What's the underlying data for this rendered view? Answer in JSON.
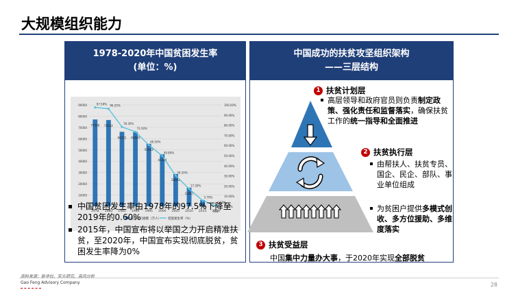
{
  "page": {
    "title": "大规模组织能力",
    "page_number": "28",
    "source": "资料来源：新华社、实头研究、高风分析",
    "company": "Gao Feng Advisory Company"
  },
  "left_panel": {
    "header_line1": "1978-2020年中国贫困发生率",
    "header_line2": "(单位：%)",
    "bullets": [
      "中国贫困发生率由1978年的97.5%下降至2019年的0.60%",
      "2015年，中国宣布将以举国之力开启精准扶贫，至2020年，中国宣布实现彻底脱贫，贫困发生率降为0%"
    ]
  },
  "right_panel": {
    "header_line1": "中国成功的扶贫攻坚组织架构",
    "header_line2": "——三层结构",
    "layers": [
      {
        "num": "1",
        "name": "扶贫计划层",
        "desc_parts": [
          [
            "高层领导和政府官员则负责",
            false
          ],
          [
            "制定政策、强化责任和监督落实",
            true
          ],
          [
            "，确保扶贫工作的",
            false
          ],
          [
            "统一指导和全面推进",
            true
          ]
        ]
      },
      {
        "num": "2",
        "name": "扶贫执行层",
        "desc_parts": [
          [
            "由帮扶人、扶贫专员、国企、民企、部队、事业单位组成",
            false
          ]
        ]
      },
      {
        "num": "3",
        "name": "扶贫受益层",
        "desc_parts": [
          [
            "为贫困户提供",
            false
          ],
          [
            "多模式创收、多方位援助、多维度落实",
            true
          ]
        ]
      }
    ],
    "bottom_parts": [
      [
        "中国",
        false
      ],
      [
        "集中力量办大事",
        true
      ],
      [
        "，于2020年实现",
        false
      ],
      [
        "全部脱贫",
        true
      ]
    ],
    "colors": {
      "top": "#2e75b6",
      "middle": "#9dc3e6",
      "bottom": "#bfbfbf"
    }
  },
  "chart_data": {
    "type": "bar",
    "categories": [
      "1978",
      "1980",
      "1985",
      "1990",
      "1995",
      "2000",
      "2005",
      "2010",
      "2015",
      "2019"
    ],
    "series": [
      {
        "name": "贫困人口规模（万人）",
        "type": "bar",
        "values": [
          77039,
          76542,
          66101,
          65849,
          55463,
          46224,
          28662,
          16567,
          5575,
          551
        ]
      },
      {
        "name": "贫困发生率（%）",
        "type": "line",
        "values": [
          97.5,
          96.2,
          78.3,
          73.5,
          60.5,
          49.8,
          30.2,
          17.2,
          5.7,
          0.6
        ]
      }
    ],
    "bar_labels": [
      "77039",
      "76542",
      "66101",
      "65849",
      "55463",
      "46224",
      "28662",
      "16567",
      "5575",
      "551"
    ],
    "line_labels": [
      "97.50%",
      "96.20%",
      "78.30%",
      "73.50%",
      "60.50%",
      "49.80%",
      "30.20%",
      "17.20%",
      "5.70%",
      "0.60%"
    ],
    "y_left_ticks": [
      "0",
      "10000",
      "20000",
      "30000",
      "40000",
      "50000",
      "60000",
      "70000",
      "80000",
      "90000"
    ],
    "y_right_ticks": [
      "0.00%",
      "10.00%",
      "20.00%",
      "30.00%",
      "40.00%",
      "50.00%",
      "60.00%",
      "70.00%",
      "80.00%",
      "90.00%",
      "100.00%"
    ],
    "ylim_left": [
      0,
      90000
    ],
    "ylim_right": [
      0,
      100
    ],
    "legend_position": "bottom",
    "bar_color": "#2e75b6",
    "line_color": "#5bc0de"
  }
}
